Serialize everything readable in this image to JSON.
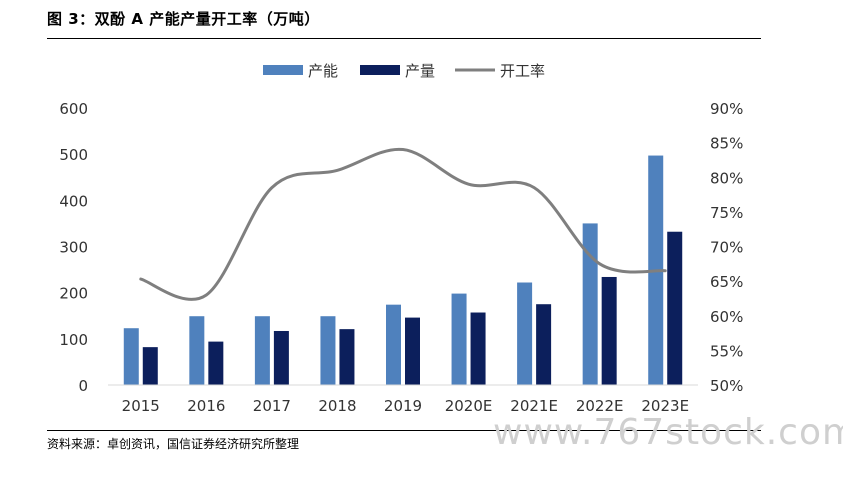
{
  "header": {
    "title": "图 3：双酚 A 产能产量开工率（万吨）"
  },
  "footer": {
    "source": "资料来源：卓创资讯，国信证券经济研究所整理",
    "watermark": "www.767stock.com"
  },
  "chart_data": {
    "type": "bar",
    "title": "图 3：双酚 A 产能产量开工率（万吨）",
    "categories": [
      "2015",
      "2016",
      "2017",
      "2018",
      "2019",
      "2020E",
      "2021E",
      "2022E",
      "2023E"
    ],
    "series": [
      {
        "name": "产能",
        "type": "bar",
        "axis": "left",
        "color": "#4F81BD",
        "values": [
          123,
          149,
          149,
          149,
          174,
          198,
          222,
          350,
          497
        ]
      },
      {
        "name": "产量",
        "type": "bar",
        "axis": "left",
        "color": "#0C1F5C",
        "values": [
          82,
          94,
          117,
          121,
          146,
          157,
          175,
          234,
          332
        ]
      },
      {
        "name": "开工率",
        "type": "line",
        "axis": "right",
        "color": "#7F7F7F",
        "values": [
          65.3,
          63.0,
          78.5,
          81.0,
          84.0,
          79.0,
          78.5,
          67.5,
          66.5
        ]
      }
    ],
    "y_left": {
      "ticks": [
        0,
        100,
        200,
        300,
        400,
        500,
        600
      ],
      "ylim": [
        0,
        600
      ]
    },
    "y_right": {
      "ticks": [
        "50%",
        "55%",
        "60%",
        "65%",
        "70%",
        "75%",
        "80%",
        "85%",
        "90%"
      ],
      "ylim": [
        50,
        90
      ]
    },
    "legend": {
      "position": "top-center"
    },
    "grid": false
  }
}
